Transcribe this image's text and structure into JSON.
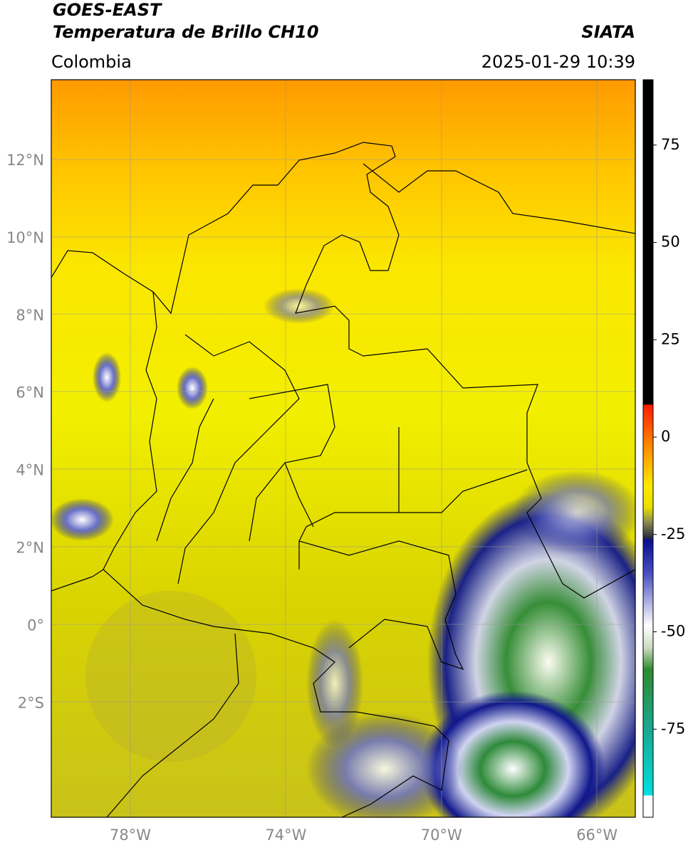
{
  "header": {
    "title": "GOES-EAST",
    "subtitle": "Temperatura de Brillo CH10",
    "region": "Colombia",
    "source": "SIATA",
    "timestamp": "2025-01-29 10:39"
  },
  "map": {
    "lat_labels": [
      "12°N",
      "10°N",
      "8°N",
      "6°N",
      "4°N",
      "2°N",
      "0°",
      "2°S"
    ],
    "lon_labels": [
      "78°W",
      "74°W",
      "70°W",
      "66°W"
    ]
  },
  "colorbar": {
    "ticks": [
      75,
      50,
      25,
      0,
      -25,
      -50,
      -75
    ]
  }
}
